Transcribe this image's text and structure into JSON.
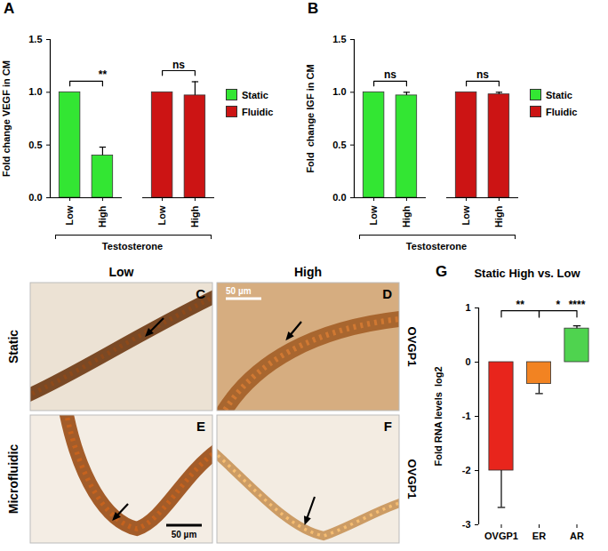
{
  "chart_data": [
    {
      "type": "bar",
      "panel_label": "A",
      "ylabel": "Fold change VEGF in CM",
      "xlabel": "Testosterone",
      "categories": [
        "Low",
        "High"
      ],
      "series": [
        {
          "name": "Static",
          "color": "#33e633",
          "values": [
            1,
            0.4
          ],
          "errors": [
            0,
            0.08
          ]
        },
        {
          "name": "Fluidic",
          "color": "#cc1414",
          "values": [
            1,
            0.97
          ],
          "errors": [
            0,
            0.13
          ]
        }
      ],
      "ylim": [
        0,
        1.5
      ],
      "yticks": [
        {
          "value": 0,
          "label": "0.0"
        },
        {
          "value": 0.5,
          "label": "0.5"
        },
        {
          "value": 1,
          "label": "1.0"
        },
        {
          "value": 1.5,
          "label": "1.5"
        }
      ],
      "legend": "right",
      "annotations": [
        {
          "series": "Static",
          "from": "Low",
          "to": "High"
        },
        {
          "series": "Static",
          "at": "High",
          "label": "**"
        },
        {
          "series": "Fluidic",
          "from": "Low",
          "to": "High",
          "label": "ns"
        }
      ]
    },
    {
      "type": "bar",
      "panel_label": "B",
      "ylabel": "Fold  change IGF in CM",
      "xlabel": "Testosterone",
      "categories": [
        "Low",
        "High"
      ],
      "series": [
        {
          "name": "Static",
          "color": "#33e633",
          "values": [
            1,
            0.97
          ],
          "errors": [
            0,
            0.03
          ]
        },
        {
          "name": "Fluidic",
          "color": "#cc1414",
          "values": [
            1,
            0.98
          ],
          "errors": [
            0,
            0.02
          ]
        }
      ],
      "ylim": [
        0,
        1.5
      ],
      "yticks": [
        {
          "value": 0,
          "label": "0.0"
        },
        {
          "value": 0.5,
          "label": "0.5"
        },
        {
          "value": 1,
          "label": "1.0"
        },
        {
          "value": 1.5,
          "label": "1.5"
        }
      ],
      "legend": "right",
      "annotations": [
        {
          "series": "Static",
          "from": "Low",
          "to": "High",
          "label": "ns"
        },
        {
          "series": "Fluidic",
          "from": "Low",
          "to": "High",
          "label": "ns"
        }
      ]
    },
    {
      "type": "bar",
      "panel_label": "G",
      "title": "Static High vs. Low",
      "ylabel": "Fold RNA levels  log2",
      "categories": [
        "OVGP1",
        "ER",
        "AR"
      ],
      "values": [
        -2,
        -0.4,
        0.62
      ],
      "errors": [
        0.68,
        0.18,
        0.05
      ],
      "colors": [
        "#e8251c",
        "#f28322",
        "#4fd34f"
      ],
      "ylim": [
        -3,
        1
      ],
      "yticks": [
        -3,
        -2,
        -1,
        0,
        1
      ],
      "annotations": [
        {
          "from": "OVGP1",
          "to": "ER",
          "label": "**"
        },
        {
          "from": "ER",
          "to": "AR",
          "label": "*"
        },
        {
          "at": "AR",
          "label": "****"
        }
      ]
    }
  ],
  "image_panels": {
    "columns": [
      "Low",
      "High"
    ],
    "rows": [
      "Static",
      "Microfluidic"
    ],
    "stain": "OVGP1",
    "letters": [
      [
        "C",
        "D"
      ],
      [
        "E",
        "F"
      ]
    ],
    "scale_bars": [
      {
        "panel": "D",
        "label": "50 µm"
      },
      {
        "panel": "E",
        "label": "50 µm"
      }
    ]
  }
}
